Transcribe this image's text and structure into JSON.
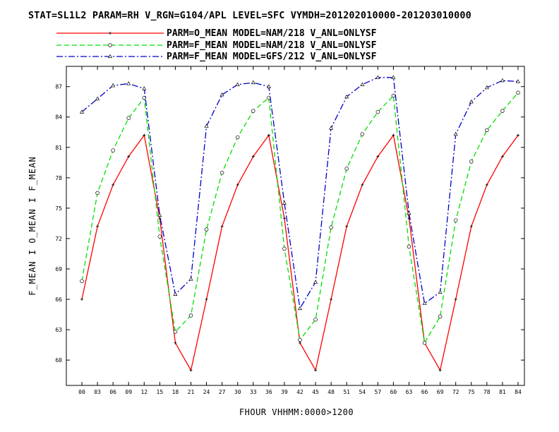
{
  "title": "STAT=SL1L2 PARAM=RH V_RGN=G104/APL LEVEL=SFC VYMDH=201202010000-201203010000",
  "chart_data": {
    "type": "line",
    "xlabel": "FHOUR VHHMM:0000>1200",
    "ylabel": "F_MEAN I O_MEAN I F_MEAN",
    "categories": [
      "00",
      "03",
      "06",
      "09",
      "12",
      "15",
      "18",
      "21",
      "24",
      "27",
      "30",
      "33",
      "36",
      "39",
      "42",
      "45",
      "48",
      "51",
      "54",
      "57",
      "60",
      "63",
      "66",
      "69",
      "72",
      "75",
      "78",
      "81",
      "84"
    ],
    "yticks": [
      60,
      63,
      66,
      69,
      72,
      75,
      78,
      81,
      84,
      87
    ],
    "ylim": [
      57.5,
      89
    ],
    "legend_position": "top",
    "grid": false,
    "series": [
      {
        "name": "PARM=O_MEAN MODEL=NAM/218 V_ANL=ONLYSF",
        "color": "#ff0000",
        "dash": "solid",
        "marker": "plus",
        "values": [
          66.0,
          73.2,
          77.3,
          80.1,
          82.2,
          74.0,
          61.7,
          59.0,
          66.0,
          73.2,
          77.3,
          80.1,
          82.2,
          74.0,
          61.7,
          59.0,
          66.0,
          73.2,
          77.3,
          80.1,
          82.2,
          74.0,
          61.7,
          59.0,
          66.0,
          73.2,
          77.3,
          80.1,
          82.2
        ]
      },
      {
        "name": "PARM=F_MEAN MODEL=NAM/218 V_ANL=ONLYSF",
        "color": "#00e000",
        "dash": "dashed",
        "marker": "circle",
        "values": [
          67.8,
          76.5,
          80.7,
          83.9,
          85.9,
          72.2,
          62.8,
          64.4,
          72.9,
          78.5,
          82.0,
          84.6,
          85.9,
          71.0,
          62.0,
          64.0,
          73.1,
          78.9,
          82.3,
          84.5,
          86.1,
          71.2,
          61.7,
          64.3,
          73.8,
          79.6,
          82.7,
          84.6,
          86.4
        ]
      },
      {
        "name": "PARM=F_MEAN MODEL=GFS/212 V_ANL=ONLYSF",
        "color": "#0000c8",
        "dash": "dashdot",
        "marker": "triangle",
        "values": [
          84.5,
          85.8,
          87.1,
          87.3,
          86.8,
          74.3,
          66.5,
          68.0,
          83.1,
          86.2,
          87.2,
          87.4,
          87.0,
          75.5,
          65.1,
          67.7,
          82.9,
          86.0,
          87.2,
          87.9,
          87.9,
          74.5,
          65.6,
          66.7,
          82.3,
          85.5,
          86.9,
          87.6,
          87.5
        ]
      }
    ]
  }
}
